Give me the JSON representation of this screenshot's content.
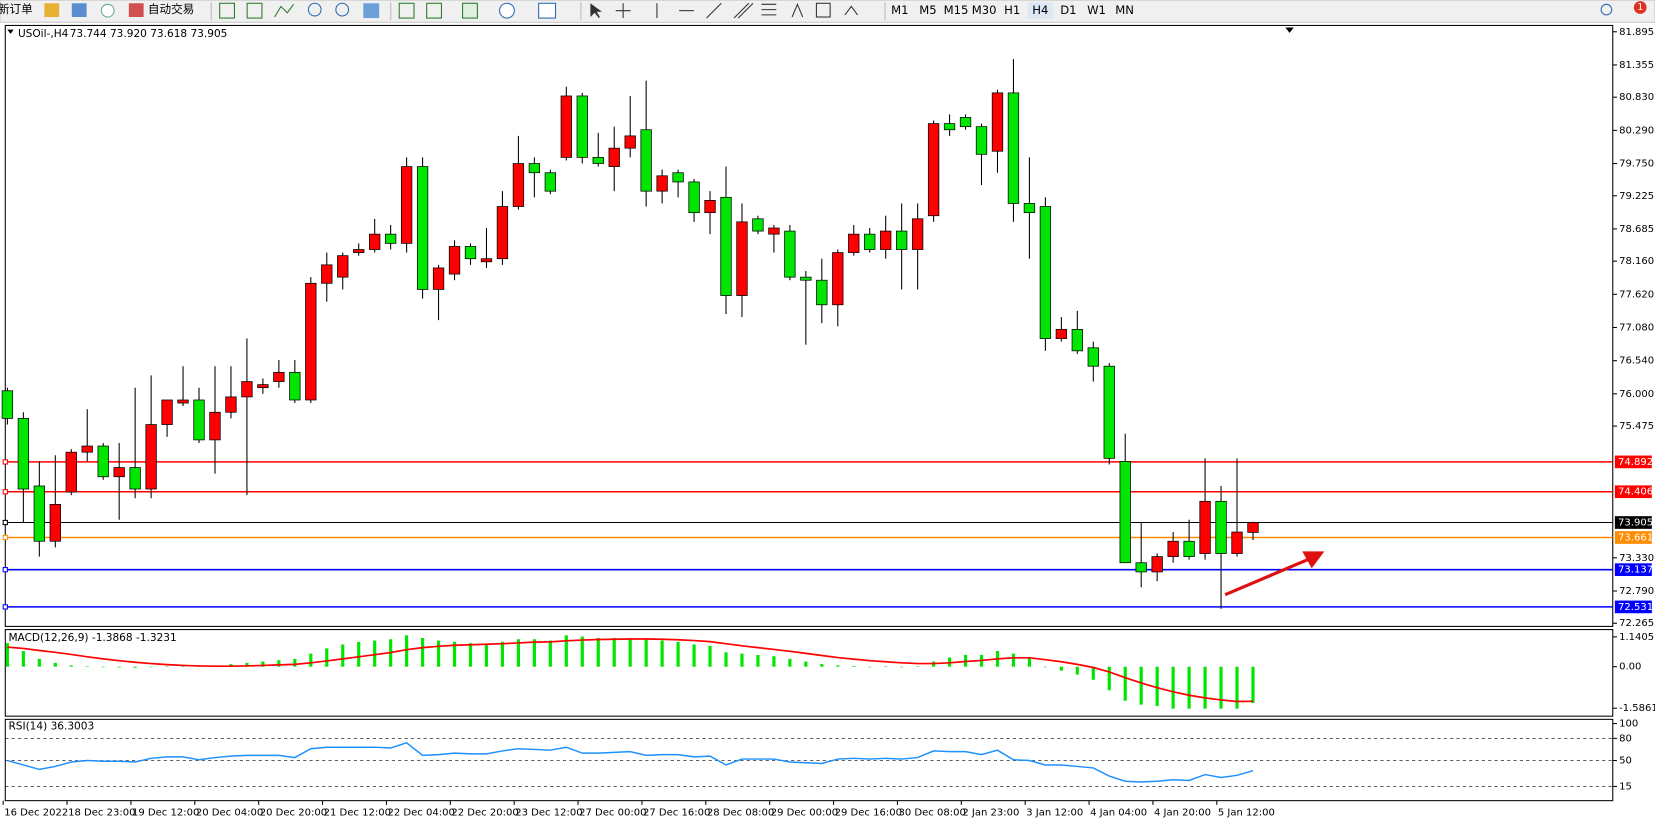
{
  "toolbar": {
    "new_order": "新订单",
    "auto_trading": "自动交易",
    "timeframes": [
      "M1",
      "M5",
      "M15",
      "M30",
      "H1",
      "H4",
      "D1",
      "W1",
      "MN"
    ],
    "alert_count": "1"
  },
  "chart_data": [
    {
      "type": "candlestick",
      "title": "USOil-,H4",
      "subtitle": "73.744 73.920 73.618 73.905",
      "categories": [
        "16 Dec 2022",
        null,
        null,
        null,
        "18 Dec 23:00",
        null,
        null,
        null,
        "19 Dec 12:00",
        null,
        null,
        null,
        "20 Dec 04:00",
        null,
        null,
        null,
        "20 Dec 20:00",
        null,
        null,
        null,
        "21 Dec 12:00",
        null,
        null,
        null,
        "22 Dec 04:00",
        null,
        null,
        null,
        "22 Dec 20:00",
        null,
        null,
        null,
        "23 Dec 12:00",
        null,
        null,
        null,
        "27 Dec 00:00",
        null,
        null,
        null,
        "27 Dec 16:00",
        null,
        null,
        null,
        "28 Dec 08:00",
        null,
        null,
        null,
        "29 Dec 00:00",
        null,
        null,
        null,
        "29 Dec 16:00",
        null,
        null,
        null,
        "30 Dec 08:00",
        null,
        null,
        null,
        "2 Jan 23:00",
        null,
        null,
        null,
        "3 Jan 12:00",
        null,
        null,
        null,
        "4 Jan 04:00",
        null,
        null,
        null,
        "4 Jan 20:00",
        null,
        null,
        null,
        "5 Jan 12:00",
        null,
        null
      ],
      "open": [
        76.05,
        75.6,
        74.5,
        73.6,
        74.4,
        75.05,
        75.15,
        74.65,
        74.8,
        74.45,
        75.5,
        75.85,
        75.9,
        75.25,
        75.7,
        75.95,
        76.1,
        76.2,
        76.35,
        75.9,
        77.8,
        77.9,
        78.3,
        78.35,
        78.6,
        78.45,
        79.7,
        77.7,
        77.95,
        78.4,
        78.15,
        78.2,
        79.05,
        79.75,
        79.6,
        79.85,
        80.85,
        79.85,
        79.7,
        80.0,
        80.3,
        79.3,
        79.6,
        79.45,
        78.95,
        79.2,
        77.6,
        78.85,
        78.6,
        78.65,
        77.9,
        77.85,
        77.45,
        78.3,
        78.6,
        78.35,
        78.65,
        78.35,
        78.9,
        80.4,
        80.5,
        80.35,
        79.95,
        80.9,
        79.1,
        79.05,
        76.9,
        77.05,
        76.75,
        76.45,
        74.9,
        73.25,
        73.1,
        73.35,
        73.6,
        73.4,
        74.25,
        73.4,
        73.744
      ],
      "high": [
        76.1,
        75.7,
        74.9,
        75.0,
        75.1,
        75.75,
        75.2,
        75.2,
        76.1,
        76.3,
        75.9,
        76.45,
        76.1,
        76.45,
        76.45,
        76.9,
        76.25,
        76.55,
        76.55,
        77.9,
        78.3,
        78.3,
        78.45,
        78.85,
        78.75,
        79.85,
        79.85,
        78.1,
        78.5,
        78.45,
        78.7,
        79.3,
        80.2,
        79.85,
        79.65,
        81.0,
        80.9,
        80.25,
        80.35,
        80.85,
        81.1,
        79.65,
        79.65,
        79.5,
        79.3,
        79.7,
        79.1,
        78.9,
        78.75,
        78.75,
        78.0,
        78.2,
        78.35,
        78.75,
        78.7,
        78.9,
        79.1,
        79.1,
        80.45,
        80.55,
        80.55,
        80.4,
        80.95,
        81.45,
        79.85,
        79.2,
        77.25,
        77.35,
        76.85,
        76.5,
        75.35,
        73.9,
        73.4,
        73.75,
        73.95,
        74.95,
        74.5,
        74.95,
        73.92
      ],
      "low": [
        75.5,
        73.9,
        73.35,
        73.5,
        74.35,
        74.9,
        74.6,
        73.95,
        74.3,
        74.3,
        75.3,
        75.8,
        75.2,
        74.7,
        75.6,
        74.35,
        76.0,
        76.1,
        75.85,
        75.85,
        77.5,
        77.7,
        78.25,
        78.3,
        78.35,
        78.3,
        77.55,
        77.2,
        77.85,
        78.1,
        78.05,
        78.1,
        79.0,
        79.2,
        79.25,
        79.8,
        79.75,
        79.7,
        79.3,
        79.85,
        79.05,
        79.1,
        79.2,
        78.8,
        78.6,
        77.3,
        77.25,
        78.6,
        78.3,
        77.85,
        76.8,
        77.15,
        77.1,
        78.25,
        78.3,
        78.2,
        77.7,
        77.7,
        78.8,
        80.2,
        80.3,
        79.4,
        79.6,
        78.8,
        78.2,
        76.7,
        76.85,
        76.65,
        76.2,
        74.85,
        73.25,
        72.85,
        72.95,
        73.25,
        73.3,
        73.3,
        72.5,
        73.35,
        73.618
      ],
      "close": [
        75.6,
        74.45,
        73.6,
        74.2,
        75.05,
        75.15,
        74.65,
        74.8,
        74.45,
        75.5,
        75.9,
        75.9,
        75.25,
        75.7,
        75.95,
        76.2,
        76.15,
        76.35,
        75.9,
        77.8,
        78.1,
        78.25,
        78.35,
        78.6,
        78.45,
        79.7,
        77.7,
        78.05,
        78.4,
        78.2,
        78.2,
        79.05,
        79.75,
        79.6,
        79.3,
        80.85,
        79.85,
        79.75,
        80.0,
        80.2,
        79.3,
        79.55,
        79.45,
        78.95,
        79.15,
        77.6,
        78.8,
        78.65,
        78.7,
        77.9,
        77.85,
        77.45,
        78.3,
        78.6,
        78.35,
        78.65,
        78.35,
        78.85,
        80.4,
        80.3,
        80.35,
        79.9,
        80.9,
        79.1,
        78.95,
        76.9,
        77.05,
        76.7,
        76.45,
        74.95,
        73.25,
        73.1,
        73.35,
        73.6,
        73.35,
        74.25,
        73.4,
        73.75,
        73.905
      ],
      "up_color": "#ff0000",
      "down_color": "#00e600",
      "ylim": [
        72.265,
        81.895
      ],
      "yticks": [
        81.895,
        81.355,
        {
          "value": 80.83,
          "label": "80.830"
        },
        {
          "value": 80.29,
          "label": "80.290"
        },
        {
          "value": 79.75,
          "label": "79.750"
        },
        79.225,
        78.685,
        {
          "value": 78.16,
          "label": "78.160"
        },
        {
          "value": 77.62,
          "label": "77.620"
        },
        {
          "value": 77.08,
          "label": "77.080"
        },
        {
          "value": 76.54,
          "label": "76.540"
        },
        {
          "value": 76,
          "label": "76.000"
        },
        75.475,
        {
          "value": 73.33,
          "label": "73.330"
        },
        {
          "value": 72.79,
          "label": "72.790"
        },
        72.265
      ],
      "levels": [
        {
          "value": 74.892,
          "color": "#ff0000"
        },
        {
          "value": 74.406,
          "color": "#ff0000"
        },
        {
          "value": 73.905,
          "color": "#000000"
        },
        {
          "value": 73.661,
          "color": "#ff8c00"
        },
        {
          "value": 73.137,
          "color": "#0000ff"
        },
        {
          "value": 72.531,
          "color": "#0000ff"
        }
      ]
    },
    {
      "type": "macd",
      "title": "MACD(12,26,9) -1.3868 -1.3231",
      "histogram": [
        0.9,
        0.6,
        0.3,
        0.15,
        0.05,
        0.02,
        -0.02,
        -0.03,
        -0.04,
        0.0,
        0.02,
        0.04,
        0.03,
        0.05,
        0.1,
        0.15,
        0.2,
        0.25,
        0.3,
        0.5,
        0.7,
        0.85,
        0.95,
        1.0,
        1.05,
        1.2,
        1.1,
        1.0,
        0.95,
        0.9,
        0.88,
        0.95,
        1.05,
        1.05,
        1.0,
        1.2,
        1.15,
        1.1,
        1.1,
        1.1,
        1.05,
        1.0,
        0.95,
        0.85,
        0.8,
        0.55,
        0.5,
        0.45,
        0.4,
        0.3,
        0.2,
        0.1,
        0.05,
        0.03,
        0.0,
        0.02,
        -0.02,
        0.02,
        0.2,
        0.35,
        0.45,
        0.45,
        0.6,
        0.5,
        0.35,
        0.0,
        -0.15,
        -0.3,
        -0.5,
        -0.9,
        -1.3,
        -1.45,
        -1.5,
        -1.6,
        -1.6,
        -1.6,
        -1.6,
        -1.6,
        -1.3868
      ],
      "signal": [
        0.75,
        0.7,
        0.62,
        0.55,
        0.47,
        0.38,
        0.3,
        0.23,
        0.17,
        0.12,
        0.08,
        0.05,
        0.03,
        0.02,
        0.02,
        0.03,
        0.05,
        0.07,
        0.09,
        0.15,
        0.22,
        0.3,
        0.38,
        0.46,
        0.54,
        0.65,
        0.73,
        0.78,
        0.82,
        0.84,
        0.86,
        0.88,
        0.91,
        0.94,
        0.95,
        0.99,
        1.02,
        1.04,
        1.05,
        1.06,
        1.06,
        1.05,
        1.03,
        1.0,
        0.96,
        0.88,
        0.8,
        0.73,
        0.66,
        0.59,
        0.51,
        0.43,
        0.35,
        0.29,
        0.23,
        0.19,
        0.15,
        0.12,
        0.12,
        0.15,
        0.2,
        0.24,
        0.3,
        0.34,
        0.34,
        0.27,
        0.19,
        0.09,
        -0.03,
        -0.2,
        -0.42,
        -0.62,
        -0.8,
        -0.96,
        -1.09,
        -1.19,
        -1.27,
        -1.33,
        -1.3231
      ],
      "histogram_color": "#00e600",
      "signal_color": "#ff0000",
      "ylim": [
        -1.85,
        1.38
      ],
      "yticks": [
        1.1405,
        {
          "value": 0,
          "label": "0.00"
        },
        -1.5861
      ]
    },
    {
      "type": "line",
      "title": "RSI(14) 36.3003",
      "values": [
        50,
        44,
        38,
        42,
        48,
        50,
        49,
        49,
        48,
        53,
        55,
        55,
        51,
        54,
        56,
        57,
        57,
        57,
        54,
        66,
        68,
        68,
        68,
        68,
        67,
        74,
        57,
        58,
        60,
        59,
        59,
        63,
        66,
        65,
        64,
        68,
        60,
        60,
        61,
        62,
        57,
        58,
        58,
        55,
        56,
        44,
        52,
        52,
        52,
        48,
        47,
        46,
        52,
        53,
        52,
        53,
        52,
        54,
        63,
        62,
        62,
        58,
        64,
        51,
        50,
        44,
        44,
        42,
        40,
        29,
        22,
        21,
        22,
        24,
        23,
        31,
        27,
        30,
        36.3003
      ],
      "color": "#1e90ff",
      "ylim": [
        0,
        100
      ],
      "yticks": [
        100,
        80,
        50,
        15
      ],
      "grid": true
    }
  ]
}
